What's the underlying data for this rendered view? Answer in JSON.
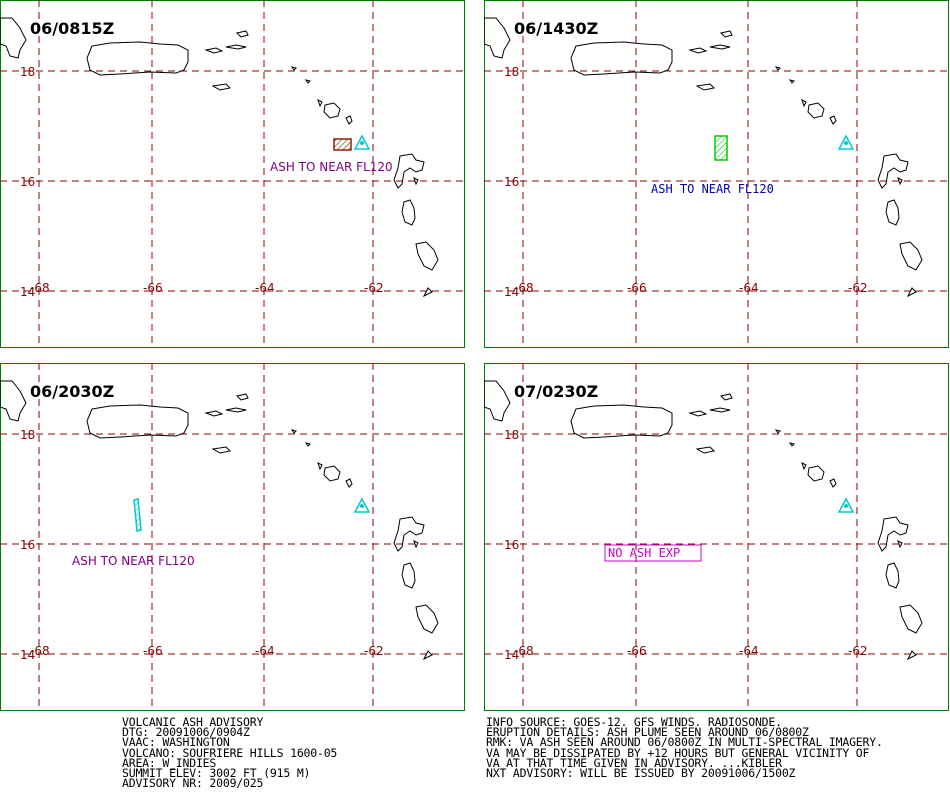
{
  "panels": [
    {
      "time": "06/0815Z",
      "ash_label": "ASH TO NEAR FL120",
      "ash_label_color": "#800080",
      "ash_color": "#8b2500",
      "ash_shape": "box"
    },
    {
      "time": "06/1430Z",
      "ash_label": "ASH TO NEAR FL120",
      "ash_label_color": "#0000b0",
      "ash_color": "#00cc00",
      "ash_shape": "tall-box"
    },
    {
      "time": "06/2030Z",
      "ash_label": "ASH TO NEAR FL120",
      "ash_label_color": "#800080",
      "ash_color": "#00cccc",
      "ash_shape": "thin-strip"
    },
    {
      "time": "07/0230Z",
      "ash_label": "NO ASH EXP",
      "ash_label_color": "#cc00cc",
      "ash_color": "#cc00cc",
      "ash_shape": "none"
    }
  ],
  "axes": {
    "lat_labels": [
      "18",
      "16",
      "14"
    ],
    "lon_labels": [
      "-68",
      "-66",
      "-64",
      "-62"
    ],
    "label_color": "#8b0000",
    "grid_color": "#8b0000",
    "frame_color": "#008000"
  },
  "volcano_icon": "volcano-triangle-icon",
  "volcano_color": "#00cccc",
  "advisory_left": [
    "VOLCANIC ASH ADVISORY",
    "DTG: 20091006/0904Z",
    "VAAC: WASHINGTON",
    "VOLCANO: SOUFRIERE HILLS 1600-05",
    "AREA: W_INDIES",
    "SUMMIT ELEV: 3002 FT (915 M)",
    "ADVISORY NR: 2009/025"
  ],
  "advisory_right": [
    "INFO SOURCE: GOES-12. GFS WINDS. RADIOSONDE.",
    "ERUPTION DETAILS: ASH PLUME SEEN AROUND 06/0800Z",
    "RMK: VA ASH SEEN AROUND 06/0800Z IN MULTI-SPECTRAL IMAGERY.",
    "VA MAY BE DISSIPATED BY +12 HOURS BUT GENERAL VICINITY OF",
    "VA AT THAT TIME GIVEN IN ADVISORY. ...KIBLER",
    "NXT ADVISORY: WILL BE ISSUED BY 20091006/1500Z"
  ]
}
